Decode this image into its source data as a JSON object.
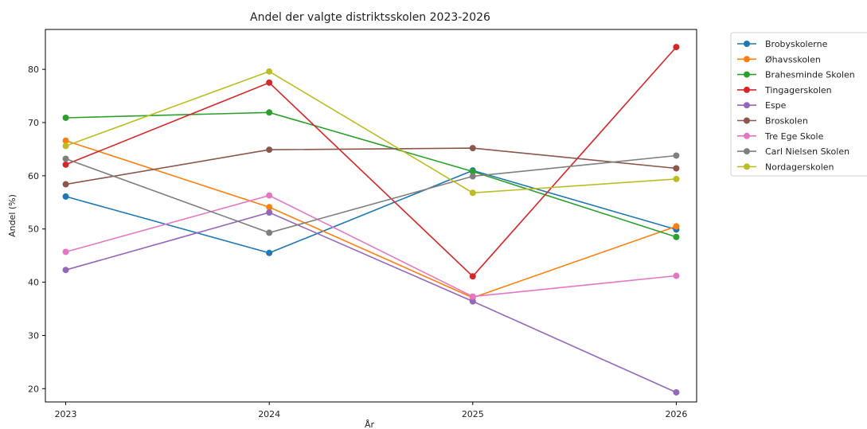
{
  "chart_data": {
    "type": "line",
    "title": "Andel der valgte distriktsskolen 2023-2026",
    "xlabel": "År",
    "ylabel": "Andel (%)",
    "x": [
      "2023",
      "2024",
      "2025",
      "2026"
    ],
    "xlim": [
      2022.9,
      2026.1
    ],
    "ylim": [
      17.5,
      87.5
    ],
    "yticks": [
      20,
      30,
      40,
      50,
      60,
      70,
      80
    ],
    "grid": false,
    "legend_position": "outside-right",
    "series": [
      {
        "name": "Brobyskolerne",
        "color": "#1f77b4",
        "values": [
          56.1,
          45.5,
          61.0,
          49.9
        ]
      },
      {
        "name": "Øhavsskolen",
        "color": "#ff7f0e",
        "values": [
          66.6,
          54.1,
          37.1,
          50.5
        ]
      },
      {
        "name": "Brahesminde Skolen",
        "color": "#2ca02c",
        "values": [
          70.9,
          71.9,
          60.8,
          48.5
        ]
      },
      {
        "name": "Tingagerskolen",
        "color": "#d62728",
        "values": [
          62.1,
          77.5,
          41.1,
          84.2
        ]
      },
      {
        "name": "Espe",
        "color": "#9467bd",
        "values": [
          42.3,
          53.1,
          36.4,
          19.3
        ]
      },
      {
        "name": "Broskolen",
        "color": "#8c564b",
        "values": [
          58.4,
          64.9,
          65.2,
          61.4
        ]
      },
      {
        "name": "Tre Ege Skole",
        "color": "#e377c2",
        "values": [
          45.7,
          56.3,
          37.3,
          41.2
        ]
      },
      {
        "name": "Carl Nielsen Skolen",
        "color": "#7f7f7f",
        "values": [
          63.2,
          49.3,
          59.9,
          63.8
        ]
      },
      {
        "name": "Nordagerskolen",
        "color": "#bcbd22",
        "values": [
          65.6,
          79.6,
          56.8,
          59.4
        ]
      }
    ]
  }
}
